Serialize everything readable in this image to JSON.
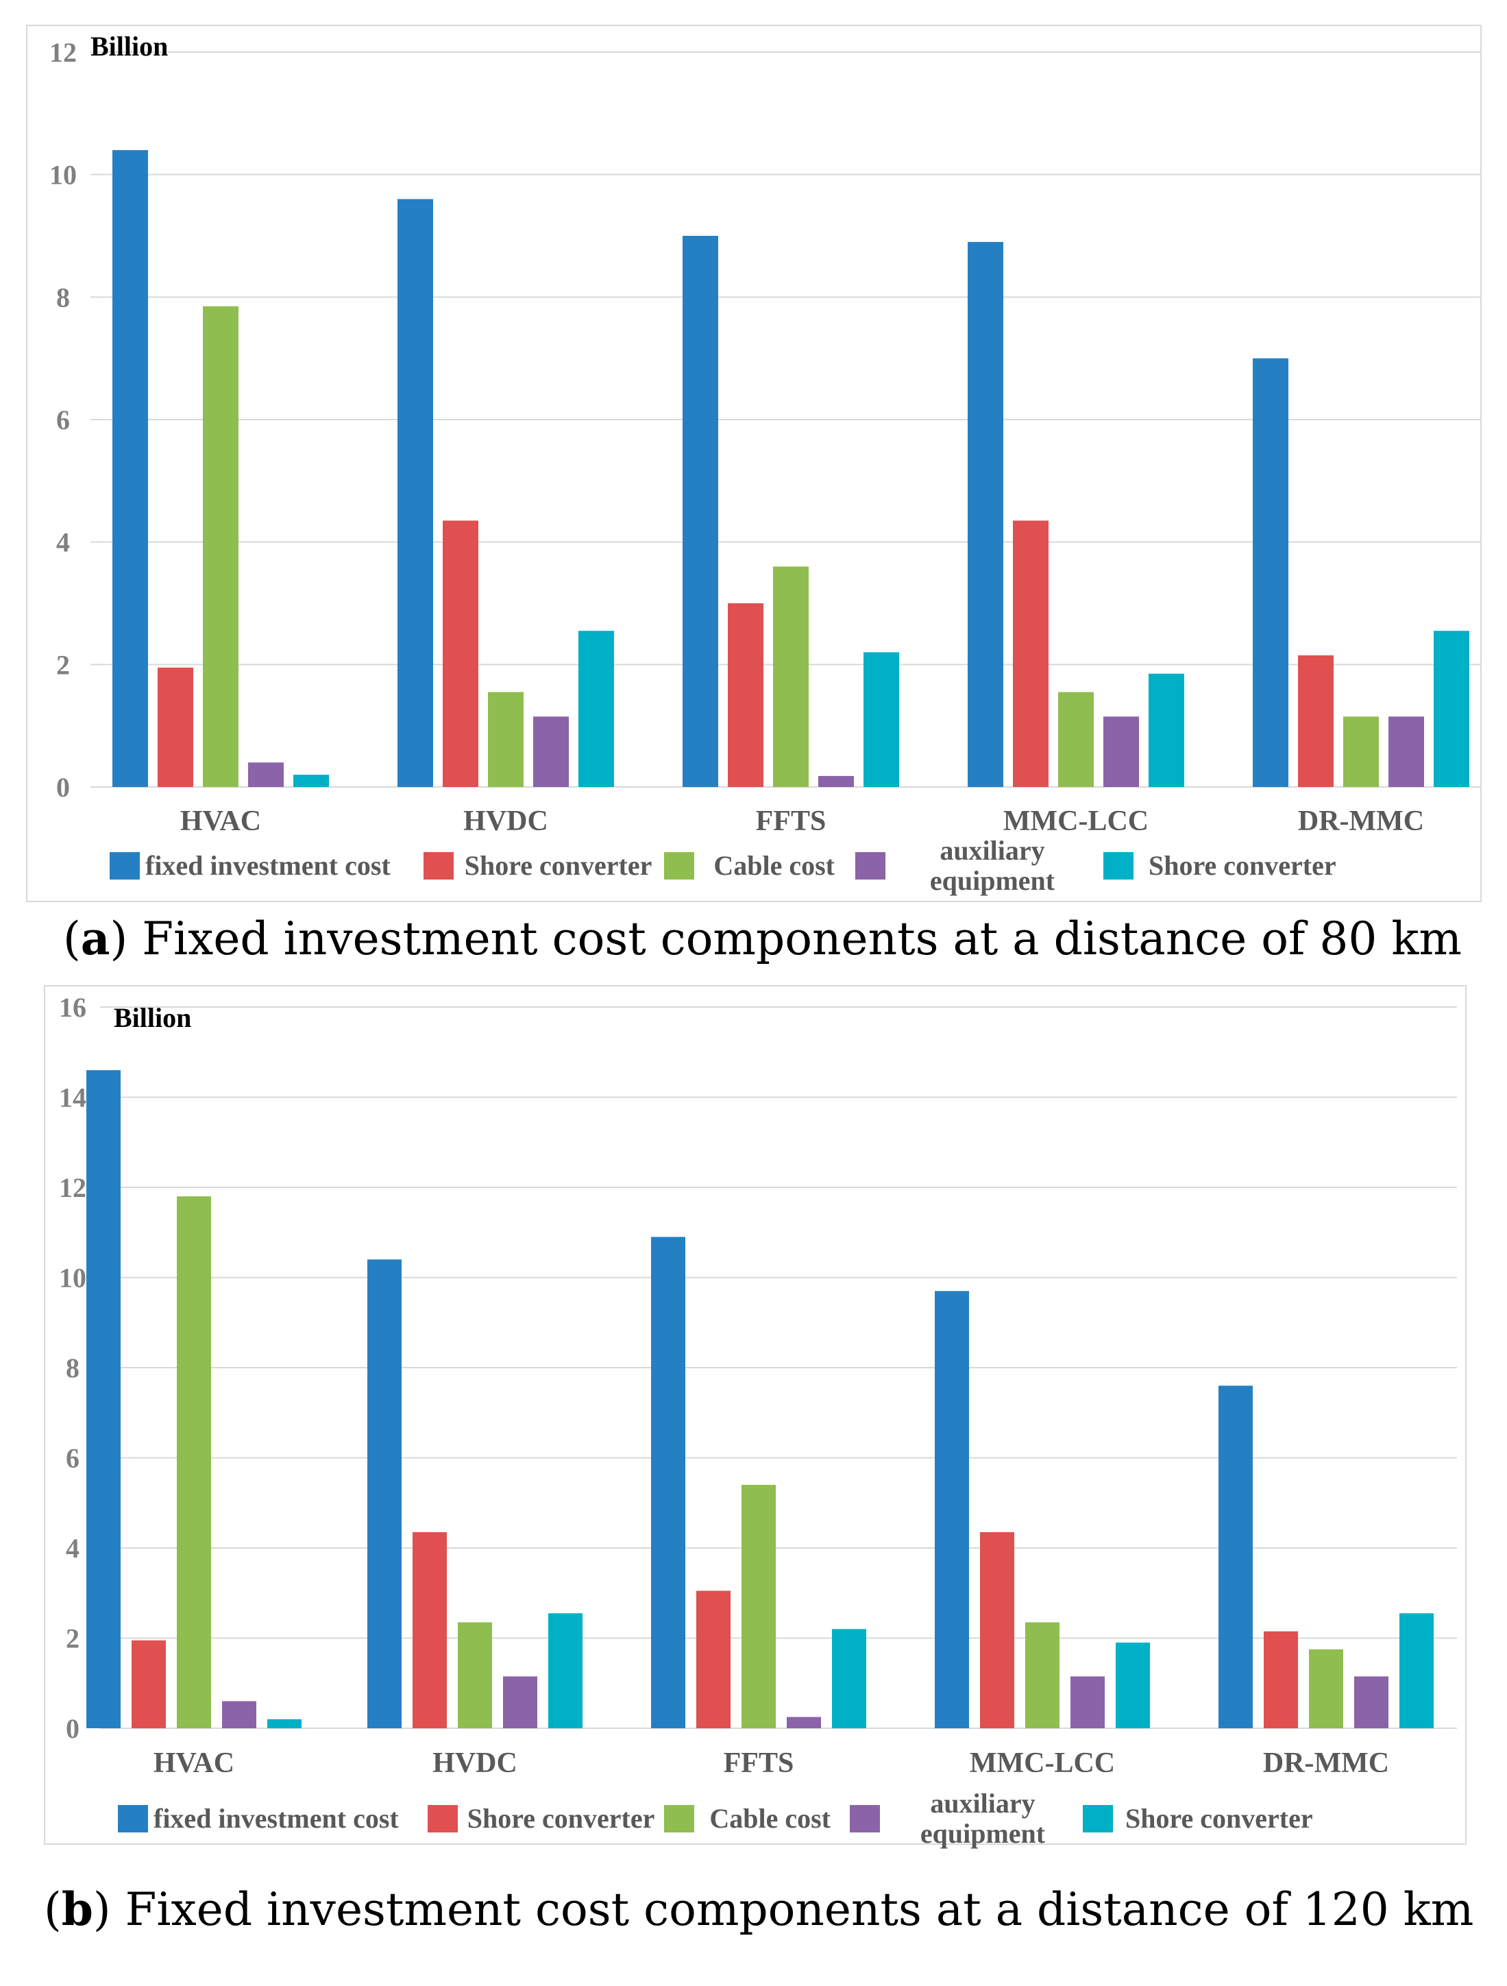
{
  "series_colors": [
    "#2580c3",
    "#e05050",
    "#8fbd4f",
    "#8b63a8",
    "#00b0c6"
  ],
  "chart_data": [
    {
      "type": "bar",
      "unit_label": "Billion",
      "categories": [
        "HVAC",
        "HVDC",
        "FFTS",
        "MMC-LCC",
        "DR-MMC"
      ],
      "ylim": [
        0,
        12
      ],
      "yticks": [
        0,
        2,
        4,
        6,
        8,
        10,
        12
      ],
      "series": [
        {
          "name": "fixed investment cost",
          "values": [
            10.4,
            9.6,
            9.0,
            8.9,
            7.0
          ]
        },
        {
          "name": "Shore converter",
          "values": [
            1.95,
            4.35,
            3.0,
            4.35,
            2.15
          ]
        },
        {
          "name": "Cable cost",
          "values": [
            7.85,
            1.55,
            3.6,
            1.55,
            1.15
          ]
        },
        {
          "name": "auxiliary equipment",
          "values": [
            0.4,
            1.15,
            0.18,
            1.15,
            1.15
          ]
        },
        {
          "name": "Shore converter",
          "values": [
            0.2,
            2.55,
            2.2,
            1.85,
            2.55
          ]
        }
      ],
      "caption_letter": "a",
      "caption_text": "Fixed investment cost components at a distance of 80 km"
    },
    {
      "type": "bar",
      "unit_label": "Billion",
      "categories": [
        "HVAC",
        "HVDC",
        "FFTS",
        "MMC-LCC",
        "DR-MMC"
      ],
      "ylim": [
        0,
        16
      ],
      "yticks": [
        0,
        2,
        4,
        6,
        8,
        10,
        12,
        14,
        16
      ],
      "series": [
        {
          "name": "fixed investment cost",
          "values": [
            14.6,
            10.4,
            10.9,
            9.7,
            7.6
          ]
        },
        {
          "name": "Shore converter",
          "values": [
            1.95,
            4.35,
            3.05,
            4.35,
            2.15
          ]
        },
        {
          "name": "Cable cost",
          "values": [
            11.8,
            2.35,
            5.4,
            2.35,
            1.75
          ]
        },
        {
          "name": "auxiliary equipment",
          "values": [
            0.6,
            1.15,
            0.25,
            1.15,
            1.15
          ]
        },
        {
          "name": "Shore converter",
          "values": [
            0.2,
            2.55,
            2.2,
            1.9,
            2.55
          ]
        }
      ],
      "caption_letter": "b",
      "caption_text": "Fixed investment cost components at a distance of 120 km"
    }
  ],
  "legend_labels": [
    "fixed investment cost",
    "Shore converter",
    "Cable cost",
    "auxiliary equipment",
    "Shore converter"
  ]
}
